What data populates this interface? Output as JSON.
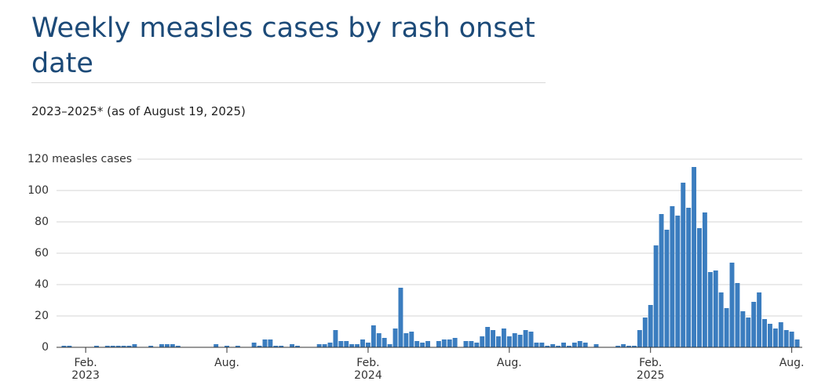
{
  "chart_data": {
    "type": "bar",
    "title": "Weekly measles cases by rash onset date",
    "subtitle": "2023–2025* (as of August 19, 2025)",
    "color": "#3b7dbf",
    "grid": true,
    "ylim": [
      0,
      120
    ],
    "yticks": [
      0,
      20,
      40,
      60,
      80,
      100,
      {
        "value": 120,
        "label": "120 measles cases"
      }
    ],
    "categories": [
      null,
      null,
      null,
      null,
      "Feb. 2023",
      null,
      null,
      null,
      null,
      null,
      null,
      null,
      null,
      null,
      null,
      null,
      null,
      null,
      null,
      null,
      null,
      null,
      null,
      null,
      null,
      null,
      null,
      null,
      null,
      null,
      "Aug.",
      null,
      null,
      null,
      null,
      null,
      null,
      null,
      null,
      null,
      null,
      null,
      null,
      null,
      null,
      null,
      null,
      null,
      null,
      null,
      null,
      null,
      null,
      null,
      null,
      null,
      "Feb. 2024",
      null,
      null,
      null,
      null,
      null,
      null,
      null,
      null,
      null,
      null,
      null,
      null,
      null,
      null,
      null,
      null,
      null,
      null,
      null,
      null,
      null,
      null,
      null,
      null,
      null,
      "Aug.",
      null,
      null,
      null,
      null,
      null,
      null,
      null,
      null,
      null,
      null,
      null,
      null,
      null,
      null,
      null,
      null,
      null,
      null,
      null,
      null,
      null,
      null,
      null,
      null,
      null,
      "Feb. 2025",
      null,
      null,
      null,
      null,
      null,
      null,
      null,
      null,
      null,
      null,
      null,
      null,
      null,
      null,
      null,
      null,
      null,
      null,
      null,
      null,
      null,
      null,
      null,
      null,
      null,
      "Aug.",
      null
    ],
    "values": [
      1,
      1,
      0,
      0,
      0,
      0,
      1,
      0,
      1,
      1,
      1,
      1,
      1,
      2,
      0,
      0,
      1,
      0,
      2,
      2,
      2,
      1,
      0,
      0,
      0,
      0,
      0,
      0,
      2,
      0,
      1,
      0,
      1,
      0,
      0,
      3,
      1,
      5,
      5,
      1,
      1,
      0,
      2,
      1,
      0,
      0,
      0,
      2,
      2,
      3,
      11,
      4,
      4,
      2,
      2,
      5,
      3,
      14,
      9,
      6,
      2,
      12,
      38,
      9,
      10,
      4,
      3,
      4,
      0,
      4,
      5,
      5,
      6,
      0,
      4,
      4,
      3,
      7,
      13,
      11,
      7,
      12,
      7,
      9,
      8,
      11,
      10,
      3,
      3,
      1,
      2,
      1,
      3,
      1,
      3,
      4,
      3,
      0,
      2,
      0,
      0,
      0,
      1,
      2,
      1,
      1,
      11,
      19,
      27,
      65,
      85,
      75,
      90,
      84,
      105,
      89,
      115,
      76,
      86,
      48,
      49,
      35,
      25,
      54,
      41,
      23,
      19,
      29,
      35,
      18,
      15,
      12,
      16,
      11,
      10,
      5
    ]
  }
}
